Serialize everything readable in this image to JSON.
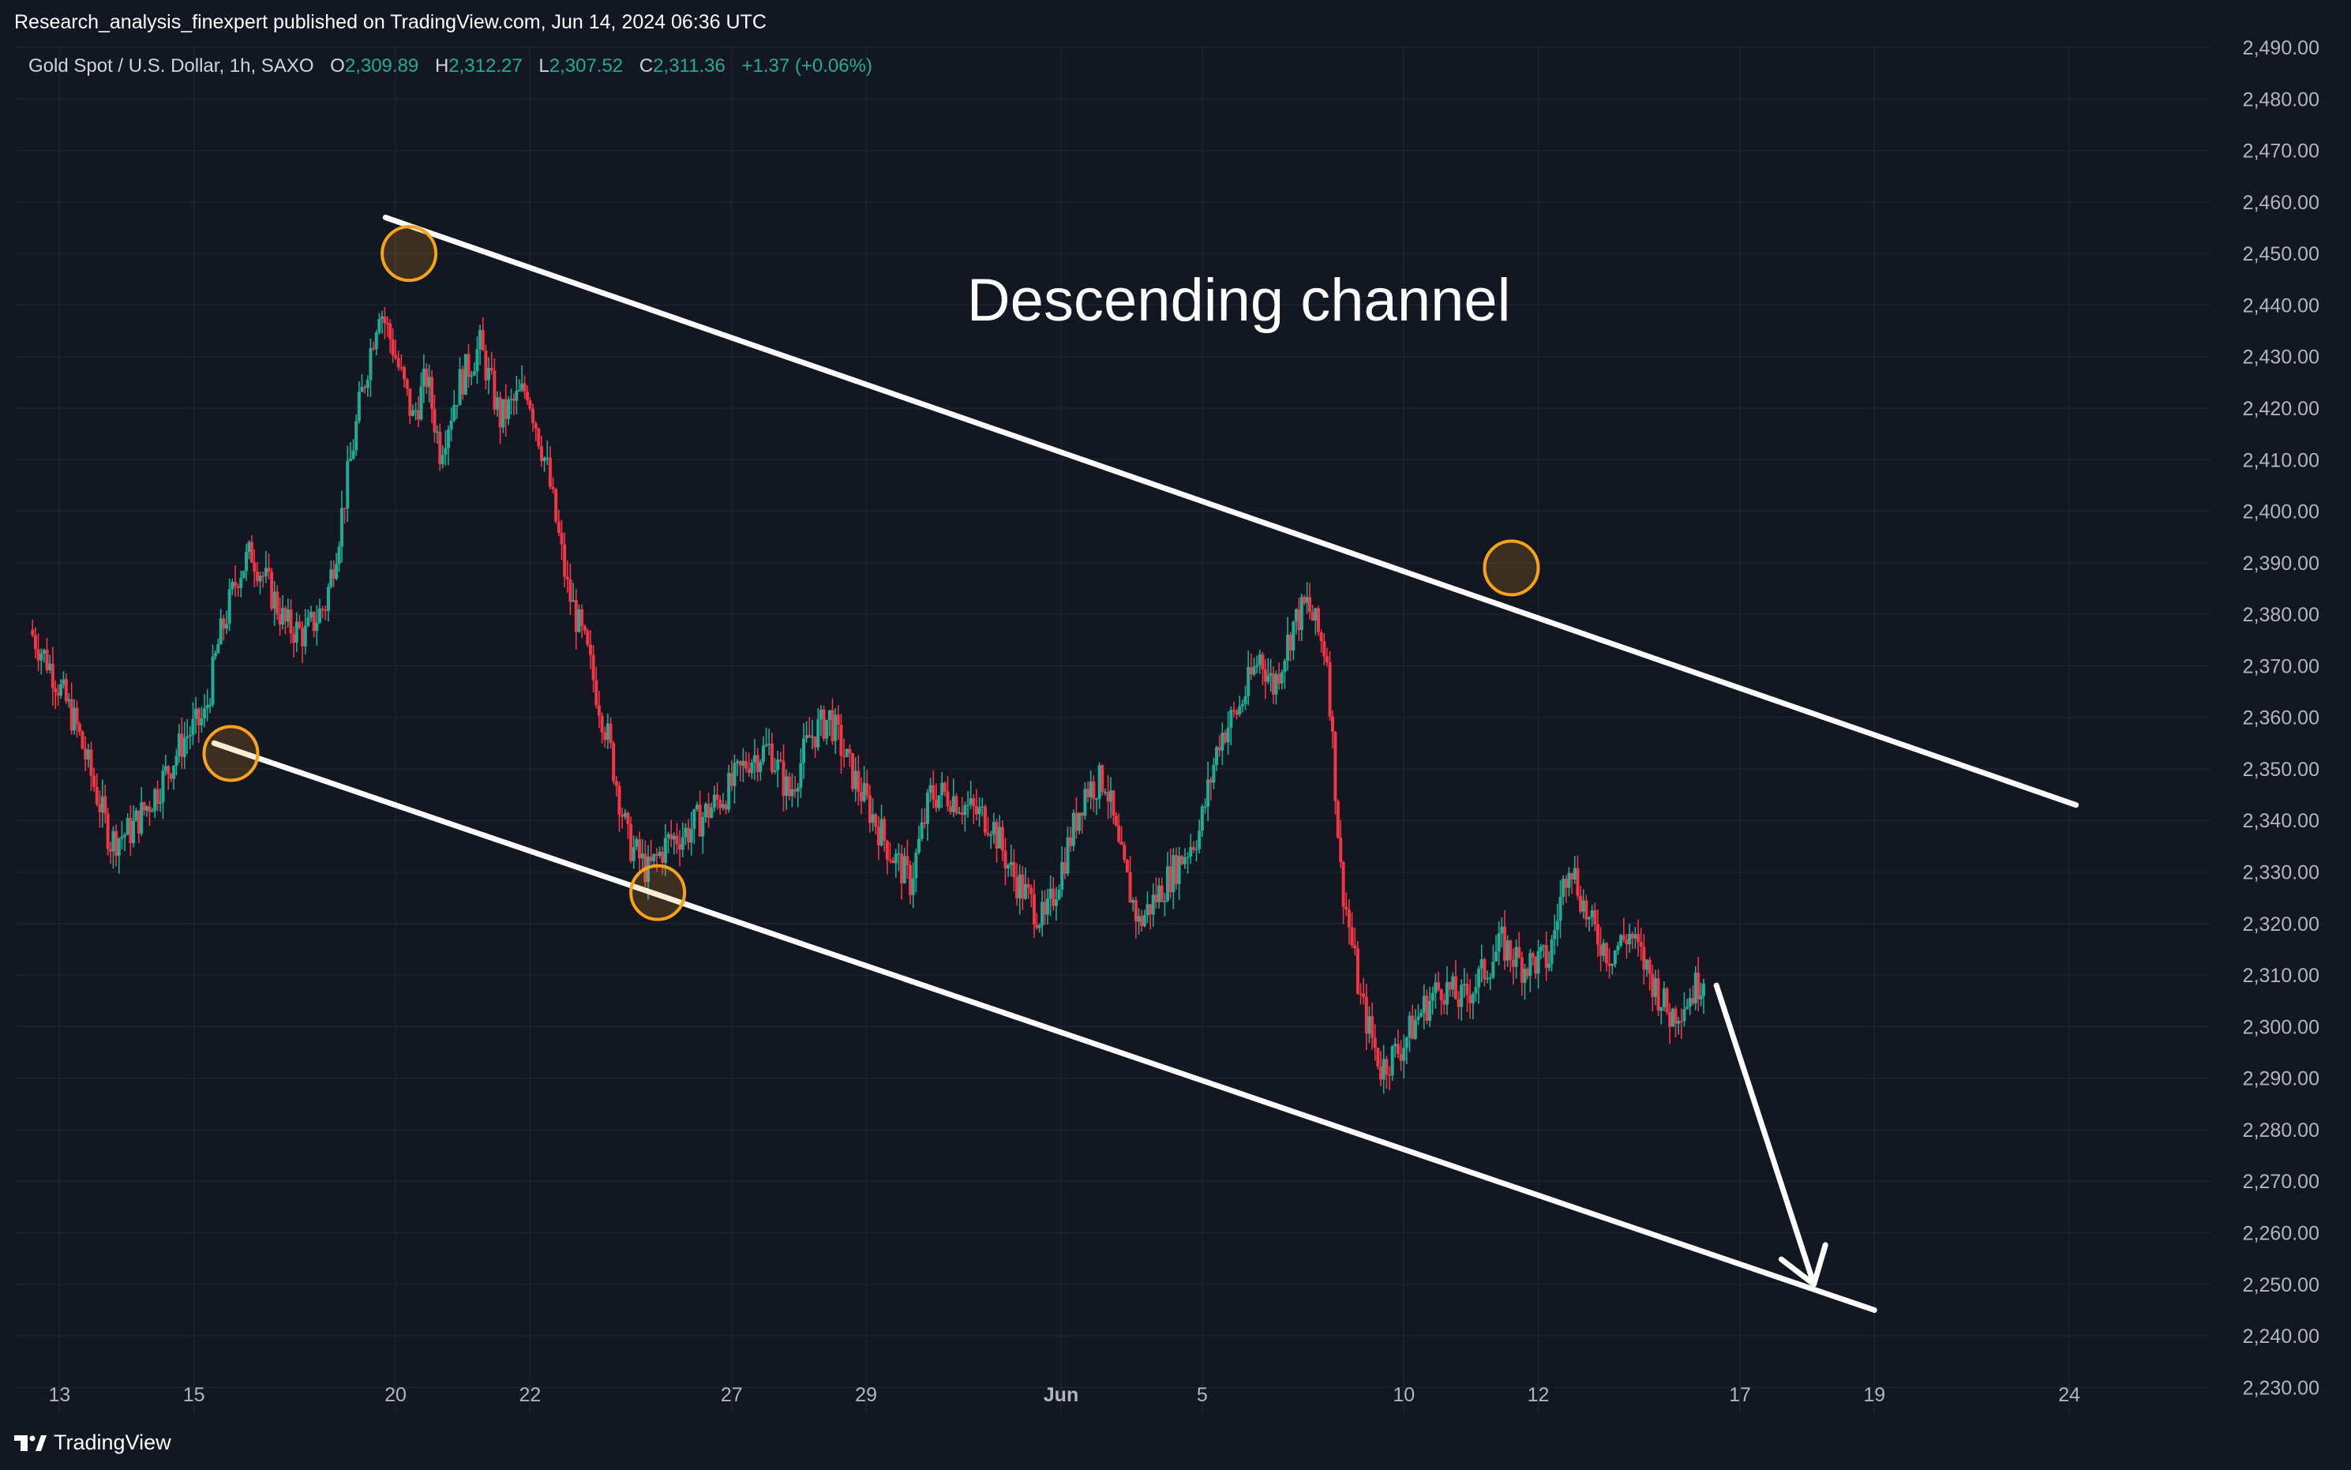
{
  "header": {
    "publisher": "Research_analysis_finexpert published on TradingView.com, Jun 14, 2024 06:36 UTC"
  },
  "legend": {
    "symbol": "Gold Spot / U.S. Dollar, 1h, SAXO",
    "o_label": "O",
    "o_val": "2,309.89",
    "h_label": "H",
    "h_val": "2,312.27",
    "l_label": "L",
    "l_val": "2,307.52",
    "c_label": "C",
    "c_val": "2,311.36",
    "change": "+1.37 (+0.06%)"
  },
  "footer": {
    "brand": "TradingView"
  },
  "colors": {
    "background": "#131722",
    "grid": "#1f2330",
    "up": "#22ab94",
    "down": "#f23645",
    "annotation": "#ffffff",
    "marker": "#f7a21b",
    "axis_text": "#b2b5be"
  },
  "chart_data": {
    "type": "candlestick",
    "title": "Gold Spot / U.S. Dollar, 1h, SAXO",
    "ylim": [
      2225,
      2490
    ],
    "yticks": [
      2230,
      2240,
      2250,
      2260,
      2270,
      2280,
      2290,
      2300,
      2310,
      2320,
      2330,
      2340,
      2350,
      2360,
      2370,
      2380,
      2390,
      2400,
      2410,
      2420,
      2430,
      2440,
      2450,
      2460,
      2470,
      2480,
      2490
    ],
    "ytick_labels": [
      "2,230.00",
      "2,240.00",
      "2,250.00",
      "2,260.00",
      "2,270.00",
      "2,280.00",
      "2,290.00",
      "2,300.00",
      "2,310.00",
      "2,320.00",
      "2,330.00",
      "2,340.00",
      "2,350.00",
      "2,360.00",
      "2,370.00",
      "2,380.00",
      "2,390.00",
      "2,400.00",
      "2,410.00",
      "2,420.00",
      "2,430.00",
      "2,440.00",
      "2,450.00",
      "2,460.00",
      "2,470.00",
      "2,480.00",
      "2,490.00"
    ],
    "xticks": [
      {
        "label": "13",
        "day": 13
      },
      {
        "label": "15",
        "day": 15
      },
      {
        "label": "20",
        "day": 18
      },
      {
        "label": "22",
        "day": 20
      },
      {
        "label": "27",
        "day": 23
      },
      {
        "label": "29",
        "day": 25
      },
      {
        "label": "Jun",
        "day": 27.9
      },
      {
        "label": "5",
        "day": 30
      },
      {
        "label": "10",
        "day": 33
      },
      {
        "label": "12",
        "day": 35
      },
      {
        "label": "17",
        "day": 38
      },
      {
        "label": "19",
        "day": 40
      },
      {
        "label": "24",
        "day": 42.9
      }
    ],
    "price_path": [
      [
        12.6,
        2377
      ],
      [
        12.9,
        2370
      ],
      [
        13.3,
        2358
      ],
      [
        13.6,
        2345
      ],
      [
        13.8,
        2336
      ],
      [
        14.1,
        2338
      ],
      [
        14.5,
        2346
      ],
      [
        14.9,
        2356
      ],
      [
        15.2,
        2360
      ],
      [
        15.4,
        2374
      ],
      [
        15.7,
        2388
      ],
      [
        15.9,
        2392
      ],
      [
        16.2,
        2384
      ],
      [
        16.4,
        2378
      ],
      [
        16.7,
        2376
      ],
      [
        17.0,
        2382
      ],
      [
        17.2,
        2396
      ],
      [
        17.5,
        2420
      ],
      [
        17.8,
        2440
      ],
      [
        18.0,
        2432
      ],
      [
        18.3,
        2418
      ],
      [
        18.5,
        2426
      ],
      [
        18.7,
        2412
      ],
      [
        19.0,
        2425
      ],
      [
        19.3,
        2432
      ],
      [
        19.6,
        2418
      ],
      [
        20.0,
        2424
      ],
      [
        20.3,
        2408
      ],
      [
        20.6,
        2385
      ],
      [
        20.9,
        2372
      ],
      [
        21.2,
        2356
      ],
      [
        21.5,
        2336
      ],
      [
        21.8,
        2330
      ],
      [
        22.1,
        2336
      ],
      [
        22.4,
        2338
      ],
      [
        22.7,
        2342
      ],
      [
        23.0,
        2346
      ],
      [
        23.3,
        2352
      ],
      [
        23.6,
        2354
      ],
      [
        23.9,
        2345
      ],
      [
        24.2,
        2356
      ],
      [
        24.5,
        2360
      ],
      [
        24.8,
        2350
      ],
      [
        25.1,
        2342
      ],
      [
        25.4,
        2334
      ],
      [
        25.7,
        2328
      ],
      [
        26.0,
        2345
      ],
      [
        26.3,
        2345
      ],
      [
        26.6,
        2342
      ],
      [
        26.9,
        2340
      ],
      [
        27.2,
        2330
      ],
      [
        27.5,
        2324
      ],
      [
        27.7,
        2320
      ],
      [
        28.0,
        2333
      ],
      [
        28.3,
        2346
      ],
      [
        28.6,
        2348
      ],
      [
        28.8,
        2334
      ],
      [
        29.1,
        2320
      ],
      [
        29.4,
        2326
      ],
      [
        29.7,
        2332
      ],
      [
        30.0,
        2338
      ],
      [
        30.3,
        2356
      ],
      [
        30.6,
        2362
      ],
      [
        30.9,
        2372
      ],
      [
        31.1,
        2366
      ],
      [
        31.4,
        2378
      ],
      [
        31.6,
        2382
      ],
      [
        31.9,
        2372
      ],
      [
        32.1,
        2330
      ],
      [
        32.4,
        2305
      ],
      [
        32.7,
        2292
      ],
      [
        33.0,
        2296
      ],
      [
        33.3,
        2303
      ],
      [
        33.6,
        2308
      ],
      [
        33.9,
        2305
      ],
      [
        34.2,
        2310
      ],
      [
        34.5,
        2316
      ],
      [
        34.8,
        2312
      ],
      [
        35.2,
        2313
      ],
      [
        35.5,
        2333
      ],
      [
        35.8,
        2320
      ],
      [
        36.1,
        2314
      ],
      [
        36.4,
        2318
      ],
      [
        36.7,
        2310
      ],
      [
        37.0,
        2302
      ],
      [
        37.3,
        2306
      ],
      [
        37.5,
        2310
      ]
    ],
    "annotations": {
      "text": "Descending channel",
      "upper_line": [
        [
          17.85,
          2457
        ],
        [
          43.0,
          2343
        ]
      ],
      "lower_line": [
        [
          15.3,
          2355
        ],
        [
          40.0,
          2245
        ]
      ],
      "touch_points": [
        [
          18.2,
          2450
        ],
        [
          15.55,
          2353
        ],
        [
          21.9,
          2326
        ],
        [
          34.6,
          2389
        ]
      ],
      "arrow": [
        [
          37.65,
          2308
        ],
        [
          39.1,
          2250
        ]
      ]
    }
  }
}
